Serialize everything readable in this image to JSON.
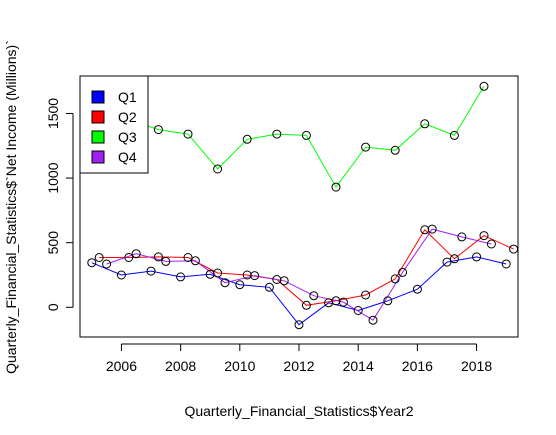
{
  "chart_data": {
    "type": "line",
    "xlabel": "Quarterly_Financial_Statistics$Year2",
    "ylabel": "Quarterly_Financial_Statistics$`Net Income (Millions)`",
    "xlim": [
      2004.6,
      2019.4
    ],
    "ylim": [
      -230,
      1790
    ],
    "xticks": [
      2006,
      2008,
      2010,
      2012,
      2014,
      2016,
      2018
    ],
    "yticks": [
      0,
      500,
      1000,
      1500
    ],
    "grid": false,
    "legend_position": "top-left",
    "series": [
      {
        "name": "Q1",
        "color": "#0000ff",
        "x": [
          2005,
          2006,
          2007,
          2008,
          2009,
          2010,
          2011,
          2012,
          2013,
          2014,
          2015,
          2016,
          2017,
          2018,
          2019
        ],
        "values": [
          345,
          250,
          280,
          235,
          255,
          175,
          155,
          -135,
          35,
          -25,
          50,
          140,
          350,
          390,
          335
        ]
      },
      {
        "name": "Q2",
        "color": "#ff0000",
        "x": [
          2005.25,
          2006.25,
          2007.25,
          2008.25,
          2009.25,
          2010.25,
          2011.25,
          2012.25,
          2013.25,
          2014.25,
          2015.25,
          2016.25,
          2017.25,
          2018.25,
          2019.25
        ],
        "values": [
          385,
          385,
          390,
          385,
          265,
          250,
          215,
          15,
          50,
          95,
          220,
          600,
          375,
          555,
          450
        ]
      },
      {
        "name": "Q3",
        "color": "#00ff00",
        "x": [
          2006.25,
          2007.25,
          2008.25,
          2009.25,
          2010.25,
          2011.25,
          2012.25,
          2013.25,
          2014.25,
          2015.25,
          2016.25,
          2017.25,
          2018.25
        ],
        "values": [
          1450,
          1375,
          1340,
          1070,
          1300,
          1340,
          1330,
          930,
          1240,
          1215,
          1420,
          1330,
          1710
        ]
      },
      {
        "name": "Q4",
        "color": "#a020f0",
        "x": [
          2005.5,
          2006.5,
          2007.5,
          2008.5,
          2009.5,
          2010.5,
          2011.5,
          2012.5,
          2013.5,
          2014.5,
          2015.5,
          2016.5,
          2017.5,
          2018.5
        ],
        "values": [
          335,
          415,
          355,
          360,
          190,
          245,
          205,
          90,
          40,
          -100,
          270,
          605,
          545,
          490
        ]
      }
    ]
  }
}
